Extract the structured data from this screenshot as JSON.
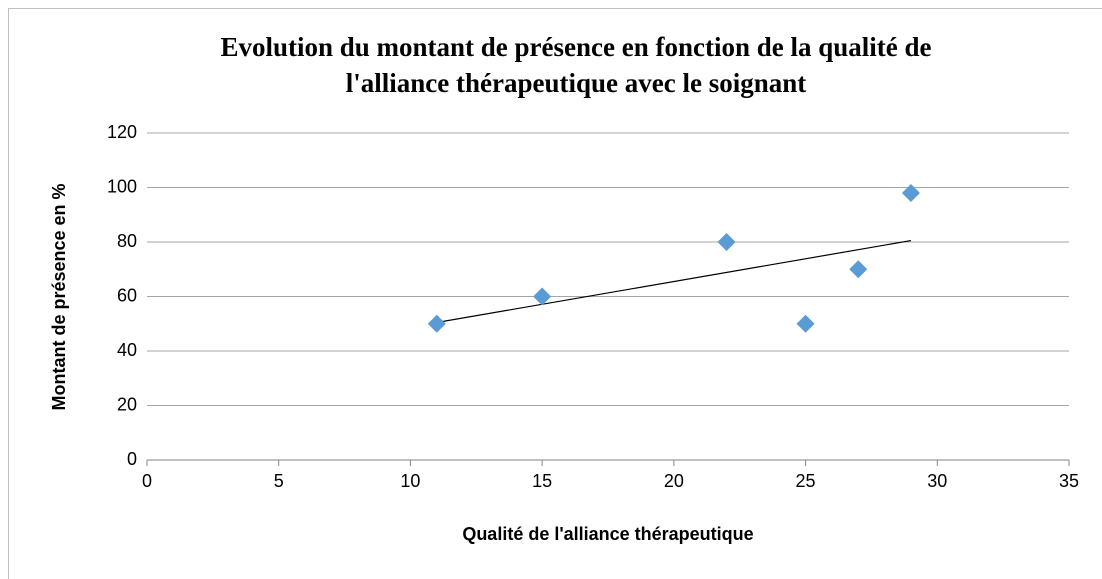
{
  "chart_data": {
    "type": "scatter",
    "title": [
      "Evolution du montant de présence en fonction de la qualité de",
      "l'alliance thérapeutique avec le soignant"
    ],
    "x_label": "Qualité de l'alliance thérapeutique",
    "y_label": "Montant de présence en %",
    "series": [
      {
        "color": "#5b9bd5",
        "x": [
          11,
          15,
          22,
          25,
          27,
          29
        ],
        "values": [
          50,
          60,
          80,
          50,
          70,
          98
        ]
      }
    ],
    "trendline": "linear",
    "xlim": [
      0,
      35
    ],
    "xticks": [
      0,
      5,
      10,
      15,
      20,
      25,
      30,
      35
    ],
    "ylim": [
      0,
      120
    ],
    "yticks": [
      0,
      20,
      40,
      60,
      80,
      100,
      120
    ],
    "grid": true
  }
}
